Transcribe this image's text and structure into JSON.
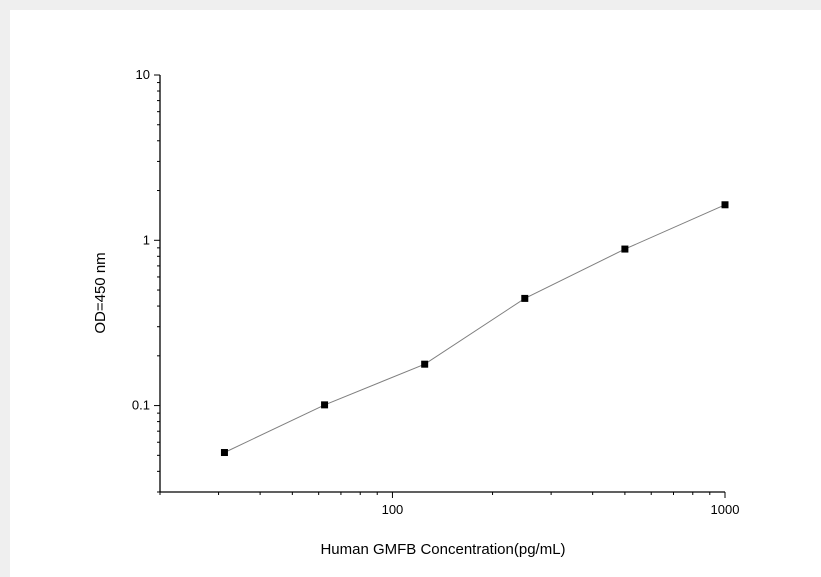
{
  "chart_data": {
    "type": "scatter",
    "title": "",
    "xlabel": "Human GMFB Concentration(pg/mL)",
    "ylabel": "OD=450 nm",
    "x_scale": "log",
    "y_scale": "log",
    "xlim": [
      20,
      1000
    ],
    "ylim": [
      0.03,
      10
    ],
    "x_ticks": [
      {
        "value": 100,
        "label": "100"
      },
      {
        "value": 1000,
        "label": "1000"
      }
    ],
    "y_ticks": [
      {
        "value": 0.1,
        "label": "0.1"
      },
      {
        "value": 1,
        "label": "1"
      },
      {
        "value": 10,
        "label": "10"
      }
    ],
    "grid": false,
    "connect_points": true,
    "marker": "square",
    "series": [
      {
        "x": [
          31.25,
          62.5,
          125,
          250,
          500,
          1000
        ],
        "y": [
          0.052,
          0.101,
          0.178,
          0.445,
          0.885,
          1.64
        ]
      }
    ],
    "colors": {
      "marker": "#000000",
      "line": "#7f7f7f",
      "axis": "#000000"
    }
  }
}
